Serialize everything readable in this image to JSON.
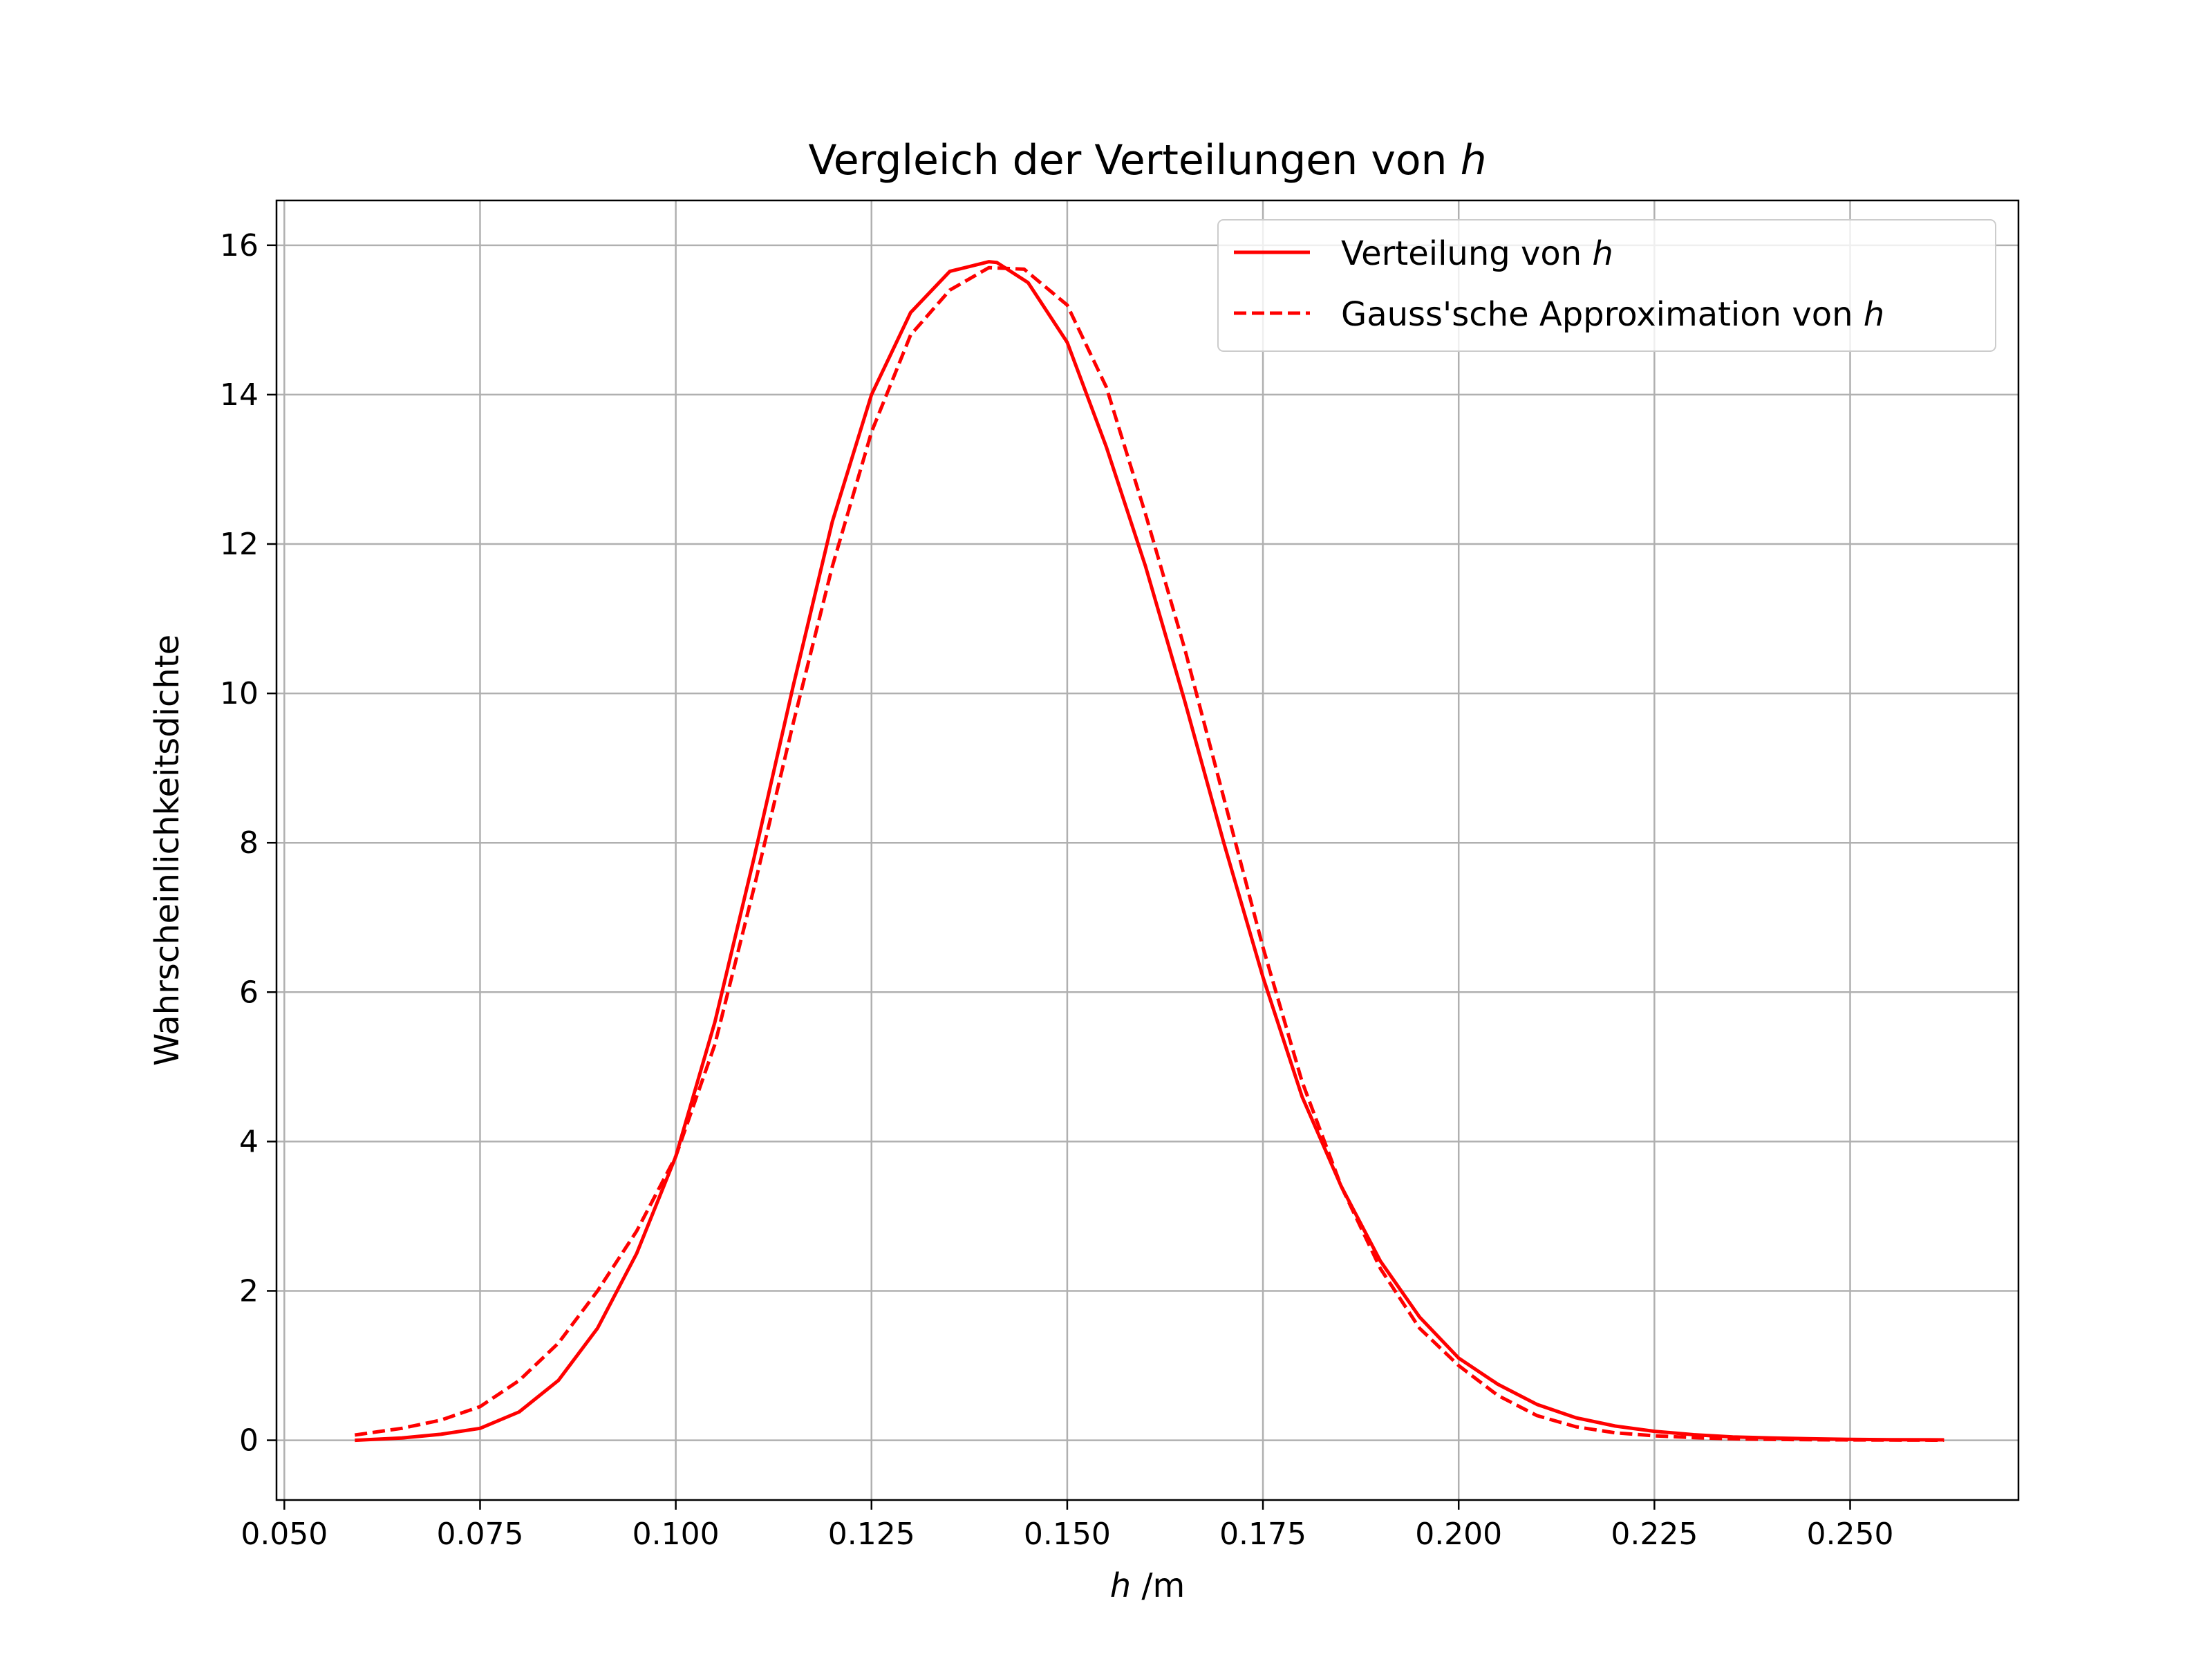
{
  "chart_data": {
    "type": "line",
    "title": "Vergleich der Verteilungen von ",
    "title_var": "h",
    "xlabel_var": "h",
    "xlabel_unit": " /m",
    "ylabel": "Wahrscheinlichkeitsdichte",
    "xlim": [
      0.049,
      0.2715
    ],
    "ylim": [
      -0.8,
      16.6
    ],
    "xticks": [
      0.05,
      0.075,
      0.1,
      0.125,
      0.15,
      0.175,
      0.2,
      0.225,
      0.25
    ],
    "xtick_labels": [
      "0.050",
      "0.075",
      "0.100",
      "0.125",
      "0.150",
      "0.175",
      "0.200",
      "0.225",
      "0.250"
    ],
    "yticks": [
      0,
      2,
      4,
      6,
      8,
      10,
      12,
      14,
      16
    ],
    "ytick_labels": [
      "0",
      "2",
      "4",
      "6",
      "8",
      "10",
      "12",
      "14",
      "16"
    ],
    "grid": true,
    "legend_position": "top-right",
    "series": [
      {
        "name": "Verteilung von ",
        "name_var": "h",
        "style": "solid",
        "color": "#ff0000",
        "x": [
          0.059,
          0.065,
          0.07,
          0.075,
          0.08,
          0.085,
          0.09,
          0.095,
          0.1,
          0.105,
          0.11,
          0.115,
          0.12,
          0.125,
          0.13,
          0.135,
          0.14,
          0.141,
          0.145,
          0.15,
          0.155,
          0.16,
          0.165,
          0.17,
          0.175,
          0.18,
          0.185,
          0.19,
          0.195,
          0.2,
          0.205,
          0.21,
          0.215,
          0.22,
          0.225,
          0.23,
          0.235,
          0.24,
          0.245,
          0.25,
          0.255,
          0.262
        ],
        "y": [
          0.0,
          0.03,
          0.08,
          0.16,
          0.38,
          0.8,
          1.5,
          2.5,
          3.8,
          5.6,
          7.8,
          10.1,
          12.3,
          14.0,
          15.1,
          15.65,
          15.78,
          15.77,
          15.5,
          14.7,
          13.3,
          11.7,
          9.9,
          8.0,
          6.2,
          4.6,
          3.4,
          2.4,
          1.65,
          1.1,
          0.75,
          0.48,
          0.3,
          0.19,
          0.12,
          0.075,
          0.045,
          0.03,
          0.02,
          0.012,
          0.008,
          0.005
        ]
      },
      {
        "name": "Gauss'sche Approximation von ",
        "name_var": "h",
        "style": "dashed",
        "color": "#ff0000",
        "x": [
          0.059,
          0.065,
          0.07,
          0.075,
          0.08,
          0.085,
          0.09,
          0.095,
          0.1,
          0.105,
          0.11,
          0.115,
          0.12,
          0.125,
          0.13,
          0.135,
          0.14,
          0.1445,
          0.15,
          0.155,
          0.16,
          0.165,
          0.17,
          0.175,
          0.18,
          0.185,
          0.19,
          0.195,
          0.2,
          0.205,
          0.21,
          0.215,
          0.22,
          0.225,
          0.23,
          0.235,
          0.24,
          0.245,
          0.25,
          0.255,
          0.262
        ],
        "y": [
          0.07,
          0.16,
          0.27,
          0.45,
          0.8,
          1.3,
          2.0,
          2.8,
          3.8,
          5.3,
          7.4,
          9.6,
          11.7,
          13.5,
          14.8,
          15.4,
          15.7,
          15.68,
          15.2,
          14.1,
          12.4,
          10.6,
          8.6,
          6.6,
          4.8,
          3.4,
          2.3,
          1.5,
          1.0,
          0.6,
          0.33,
          0.18,
          0.1,
          0.06,
          0.035,
          0.02,
          0.012,
          0.007,
          0.004,
          0.002,
          0.001
        ]
      }
    ]
  }
}
